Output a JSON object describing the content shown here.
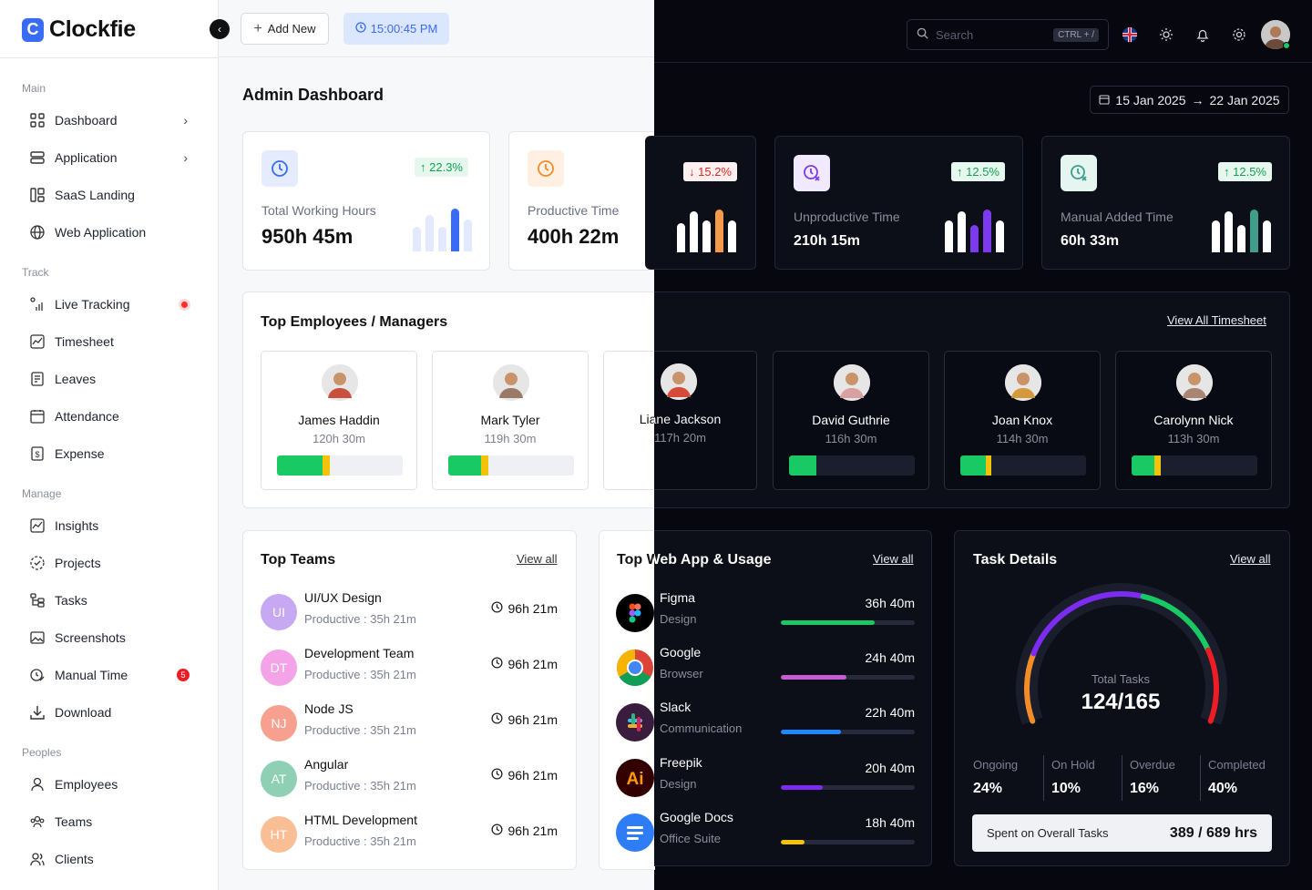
{
  "app": {
    "name": "Clockfie",
    "logo_letter": "C"
  },
  "header": {
    "add_new_label": "Add New",
    "clock_time": "15:00:45 PM",
    "search_placeholder": "Search",
    "search_shortcut": "CTRL + /",
    "icons": [
      "uk-flag-icon",
      "sun-icon",
      "bell-icon",
      "gear-icon",
      "user-avatar"
    ]
  },
  "sidebar": {
    "sections": [
      {
        "title": "Main",
        "items": [
          {
            "label": "Dashboard",
            "icon": "grid-icon",
            "chevron": true
          },
          {
            "label": "Application",
            "icon": "stack-icon",
            "chevron": true
          },
          {
            "label": "SaaS Landing",
            "icon": "layout-icon"
          },
          {
            "label": "Web Application",
            "icon": "globe-icon"
          }
        ]
      },
      {
        "title": "Track",
        "items": [
          {
            "label": "Live Tracking",
            "icon": "signal-icon",
            "live_dot": true
          },
          {
            "label": "Timesheet",
            "icon": "chart-line-icon"
          },
          {
            "label": "Leaves",
            "icon": "document-icon"
          },
          {
            "label": "Attendance",
            "icon": "calendar-icon"
          },
          {
            "label": "Expense",
            "icon": "dollar-file-icon"
          }
        ]
      },
      {
        "title": "Manage",
        "items": [
          {
            "label": "Insights",
            "icon": "chart-line-icon"
          },
          {
            "label": "Projects",
            "icon": "dashed-circle-icon"
          },
          {
            "label": "Tasks",
            "icon": "tree-icon"
          },
          {
            "label": "Screenshots",
            "icon": "image-icon"
          },
          {
            "label": "Manual Time",
            "icon": "clock-edit-icon",
            "badge": "5"
          },
          {
            "label": "Download",
            "icon": "download-icon"
          }
        ]
      },
      {
        "title": "Peoples",
        "items": [
          {
            "label": "Employees",
            "icon": "user-icon"
          },
          {
            "label": "Teams",
            "icon": "team-icon"
          },
          {
            "label": "Clients",
            "icon": "users-icon"
          }
        ]
      }
    ]
  },
  "page": {
    "title": "Admin Dashboard",
    "date_start": "15 Jan 2025",
    "date_end": "22 Jan 2025"
  },
  "stats": [
    {
      "label": "Total Working Hours",
      "value": "950h 45m",
      "change": "22.3%",
      "direction": "up",
      "bar_color": "#3a6bf5",
      "bars": [
        0.55,
        0.8,
        0.55,
        0.95,
        0.7
      ]
    },
    {
      "label": "Productive Time",
      "value": "400h 22m",
      "change": "",
      "direction": "",
      "bar_color": "#f59a4a",
      "bars": []
    },
    {
      "label": "",
      "value": "",
      "change": "15.2%",
      "direction": "down",
      "bar_color": "#f59a4a",
      "bars": [
        0.65,
        0.9,
        0.7,
        0.95,
        0.7
      ]
    },
    {
      "label": "Unproductive Time",
      "value": "210h 15m",
      "change": "12.5%",
      "direction": "up",
      "bar_color": "#7c3aed",
      "bars": [
        0.7,
        0.9,
        0.6,
        0.95,
        0.7
      ]
    },
    {
      "label": "Manual Added Time",
      "value": "60h 33m",
      "change": "12.5%",
      "direction": "up",
      "bar_color": "#3f9d8a",
      "bars": [
        0.7,
        0.9,
        0.6,
        0.95,
        0.7
      ]
    }
  ],
  "top_employees": {
    "title": "Top Employees / Managers",
    "link": "View All Timesheet",
    "items": [
      {
        "name": "James Haddin",
        "hours": "120h 30m",
        "green": 0.36,
        "yellow": 0.06,
        "avatar_color": "#c9503f"
      },
      {
        "name": "Mark Tyler",
        "hours": "119h 30m",
        "green": 0.26,
        "yellow": 0.06,
        "avatar_color": "#9a7a66"
      },
      {
        "name": "Liane Jackson",
        "hours": "117h 20m",
        "green": 0.24,
        "yellow": 0.05,
        "avatar_color": "#d64a3a"
      },
      {
        "name": "David Guthrie",
        "hours": "116h 30m",
        "green": 0.22,
        "yellow": 0,
        "avatar_color": "#d8a0a0"
      },
      {
        "name": "Joan Knox",
        "hours": "114h 30m",
        "green": 0.2,
        "yellow": 0.05,
        "avatar_color": "#d49a3a"
      },
      {
        "name": "Carolynn Nick",
        "hours": "113h 30m",
        "green": 0.18,
        "yellow": 0.05,
        "avatar_color": "#a88672"
      }
    ]
  },
  "top_teams": {
    "title": "Top Teams",
    "link": "View all",
    "items": [
      {
        "initials": "UI",
        "name": "UI/UX Design",
        "productive": "Productive : 35h 21m",
        "time": "96h 21m",
        "color": "#c7a8f3"
      },
      {
        "initials": "DT",
        "name": "Development Team",
        "productive": "Productive : 35h 21m",
        "time": "96h 21m",
        "color": "#f5a3e9"
      },
      {
        "initials": "NJ",
        "name": "Node JS",
        "productive": "Productive : 35h 21m",
        "time": "96h 21m",
        "color": "#f7a08f"
      },
      {
        "initials": "AT",
        "name": "Angular",
        "productive": "Productive : 35h 21m",
        "time": "96h 21m",
        "color": "#8fcfb4"
      },
      {
        "initials": "HT",
        "name": "HTML Development",
        "productive": "Productive : 35h 21m",
        "time": "96h 21m",
        "color": "#f9be94"
      }
    ]
  },
  "web_apps": {
    "title": "Top Web App & Usage",
    "link": "View all",
    "items": [
      {
        "name": "Figma",
        "category": "Design",
        "time": "36h 40m",
        "progress": 0.7,
        "color": "#18c964",
        "icon": "figma-icon"
      },
      {
        "name": "Google",
        "category": "Browser",
        "time": "24h 40m",
        "progress": 0.49,
        "color": "#c75bd6",
        "icon": "chrome-icon"
      },
      {
        "name": "Slack",
        "category": "Communication",
        "time": "22h 40m",
        "progress": 0.45,
        "color": "#1e88ff",
        "icon": "slack-icon"
      },
      {
        "name": "Freepik",
        "category": "Design",
        "time": "20h 40m",
        "progress": 0.31,
        "color": "#7b2cf0",
        "icon": "illustrator-icon"
      },
      {
        "name": "Google Docs",
        "category": "Office Suite",
        "time": "18h 40m",
        "progress": 0.18,
        "color": "#f5c20a",
        "icon": "docs-icon"
      }
    ]
  },
  "task_details": {
    "title": "Task Details",
    "link": "View all",
    "gauge_label": "Total Tasks",
    "gauge_value": "124/165",
    "statuses": [
      {
        "label": "Ongoing",
        "value": "24%",
        "color": "#f28c28"
      },
      {
        "label": "On Hold",
        "value": "10%",
        "color": "#7b2cf0"
      },
      {
        "label": "Overdue",
        "value": "16%",
        "color": "#18c964"
      },
      {
        "label": "Completed",
        "value": "40%",
        "color": "#ee1c24"
      }
    ],
    "spent_label": "Spent on Overall Tasks",
    "spent_value": "389 / 689 hrs"
  }
}
